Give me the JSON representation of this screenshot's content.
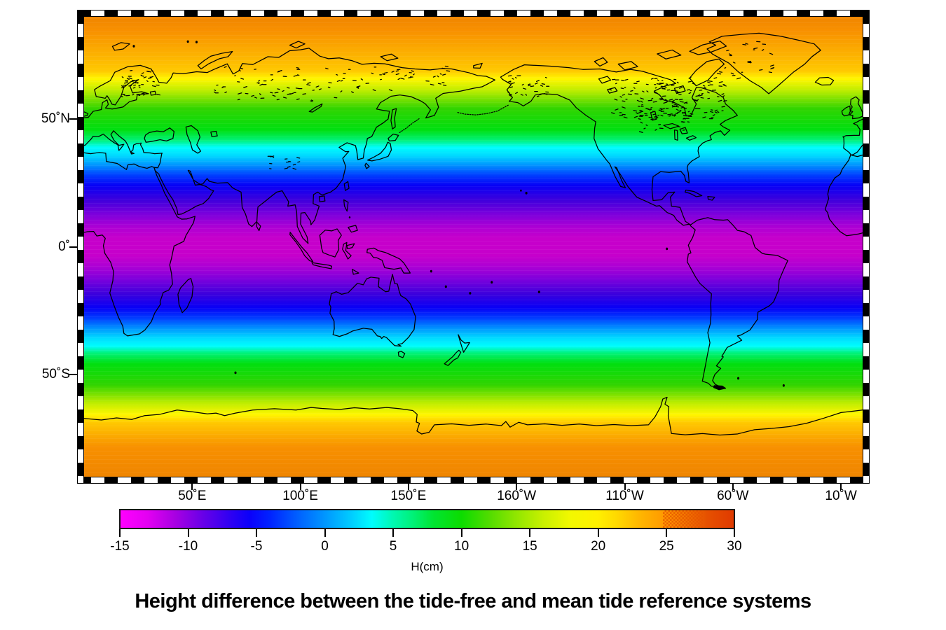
{
  "figure": {
    "title": "Height difference between the tide-free and mean tide reference systems"
  },
  "map": {
    "y_tick_labels": [
      "50˚N",
      "0˚",
      "50˚S"
    ],
    "x_tick_labels": [
      "50˚E",
      "100˚E",
      "150˚E",
      "160˚W",
      "110˚W",
      "60˚W",
      "10˚W"
    ]
  },
  "colorbar": {
    "tick_labels": [
      "-15",
      "-10",
      "-5",
      "0",
      "5",
      "10",
      "15",
      "20",
      "25",
      "30"
    ],
    "unit_label": "H(cm)",
    "min": -15,
    "max": 30
  },
  "chart_data": {
    "type": "heatmap",
    "title": "Height difference between the tide-free and mean tide reference systems",
    "colorbar_label": "H(cm)",
    "colorbar_range": [
      -15,
      30
    ],
    "colorbar_ticks": [
      -15,
      -10,
      -5,
      0,
      5,
      10,
      15,
      20,
      25,
      30
    ],
    "x_tick_labels": [
      "50°E",
      "100°E",
      "150°E",
      "160°W",
      "110°W",
      "60°W",
      "10°W"
    ],
    "y_tick_labels": [
      "50°N",
      "0°",
      "50°S"
    ],
    "projection": "equirectangular, longitude 0°E to 360°E, latitude 90°N to 90°S",
    "field": "zonal latitude-dependent height difference",
    "lat_profile": [
      {
        "lat": 90,
        "H_cm": 25
      },
      {
        "lat": 70,
        "H_cm": 17
      },
      {
        "lat": 50,
        "H_cm": 9
      },
      {
        "lat": 35,
        "H_cm": 0
      },
      {
        "lat": 20,
        "H_cm": -8
      },
      {
        "lat": 0,
        "H_cm": -12
      },
      {
        "lat": -20,
        "H_cm": -8
      },
      {
        "lat": -35,
        "H_cm": 0
      },
      {
        "lat": -50,
        "H_cm": 9
      },
      {
        "lat": -70,
        "H_cm": 17
      },
      {
        "lat": -90,
        "H_cm": 25
      }
    ]
  }
}
